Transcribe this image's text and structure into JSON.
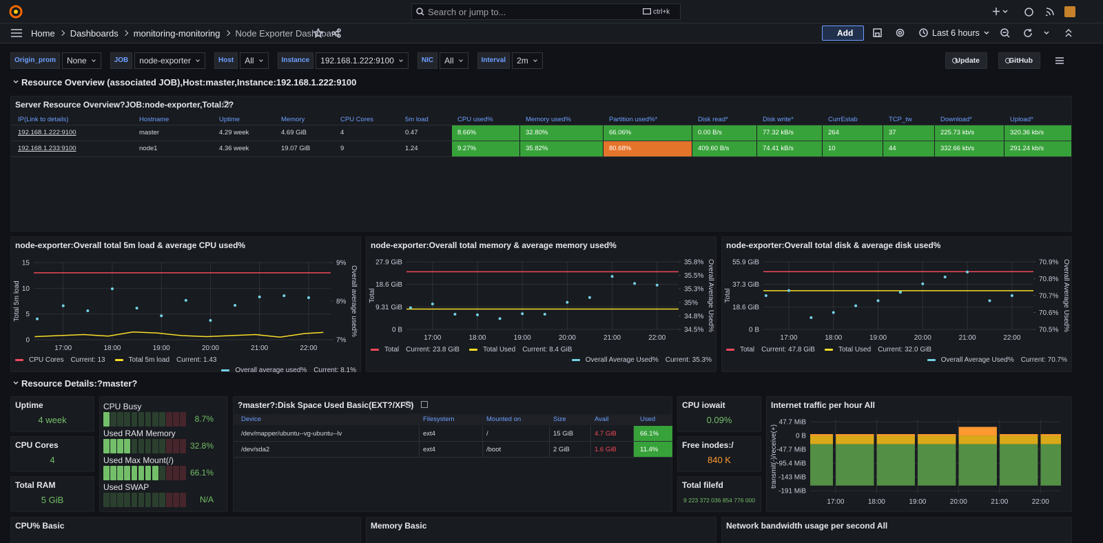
{
  "topbar": {
    "search": "Search or jump to...",
    "shortcut": "ctrl+k"
  },
  "nav": {
    "breadcrumbs": [
      "Home",
      "Dashboards",
      "monitoring-monitoring",
      "Node Exporter Dashboard"
    ],
    "add": "Add",
    "time_range": "Last 6 hours"
  },
  "variables": [
    {
      "label": "Origin_prom",
      "value": "None"
    },
    {
      "label": "JOB",
      "value": "node-exporter"
    },
    {
      "label": "Host",
      "value": "All"
    },
    {
      "label": "Instance",
      "value": "192.168.1.222:9100"
    },
    {
      "label": "NIC",
      "value": "All"
    },
    {
      "label": "Interval",
      "value": "2m"
    }
  ],
  "buttons": [
    "Update",
    "GitHub"
  ],
  "rows": [
    "Resource Overview (associated JOB),Host:master,Instance:192.168.1.222:9100",
    "Resource Details:?master?"
  ],
  "overview_table": {
    "title": "Server Resource Overview?JOB:node-exporter,Total:2?",
    "columns": [
      "IP(Link to details)",
      "Hostname",
      "Uptime",
      "Memory",
      "CPU Cores",
      "5m load",
      "CPU used%",
      "Memory used%",
      "Partition used%*",
      "Disk read*",
      "Disk write*",
      "CurrEstab",
      "TCP_tw",
      "Download*",
      "Upload*"
    ],
    "rows": [
      [
        "192.168.1.222:9100",
        "master",
        "4.29 week",
        "4.69 GiB",
        "4",
        "0.47",
        "8.66%",
        "32.80%",
        "66.06%",
        "0.00 B/s",
        "77.32 kB/s",
        "264",
        "37",
        "225.73 kb/s",
        "320.36 kb/s"
      ],
      [
        "192.168.1.233:9100",
        "node1",
        "4.36 week",
        "19.07 GiB",
        "9",
        "1.24",
        "9.27%",
        "35.82%",
        "80.68%",
        "409.60 B/s",
        "74.41 kB/s",
        "10",
        "44",
        "332.66 kb/s",
        "291.24 kb/s"
      ]
    ],
    "cell_colors": [
      [
        null,
        null,
        null,
        null,
        null,
        null,
        "#37a23a",
        "#37a23a",
        "#37a23a",
        "#37a23a",
        "#37a23a",
        "#37a23a",
        "#37a23a",
        "#37a23a",
        "#37a23a"
      ],
      [
        null,
        null,
        null,
        null,
        null,
        null,
        "#37a23a",
        "#37a23a",
        "#e5742b",
        "#37a23a",
        "#37a23a",
        "#37a23a",
        "#37a23a",
        "#37a23a",
        "#37a23a"
      ]
    ]
  },
  "charts": [
    {
      "type": "line",
      "title": "node-exporter:Overall total 5m load & average CPU used%",
      "ylabel": "Total 5m load",
      "y2label": "Overall average used%",
      "xlim": [
        16.4,
        22.45
      ],
      "xticks": [
        {
          "value": 17,
          "label": "17:00"
        },
        {
          "value": 18,
          "label": "18:00"
        },
        {
          "value": 19,
          "label": "19:00"
        },
        {
          "value": 20,
          "label": "20:00"
        },
        {
          "value": 21,
          "label": "21:00"
        },
        {
          "value": 22,
          "label": "22:00"
        }
      ],
      "ylim": [
        0,
        15
      ],
      "yticks": [
        0,
        5,
        10,
        15
      ],
      "y2lim": [
        7,
        9
      ],
      "y2ticks": [
        {
          "value": 7,
          "label": "7%"
        },
        {
          "value": 8,
          "label": "8%"
        },
        {
          "value": 9,
          "label": "9%"
        }
      ],
      "series": [
        {
          "name": "CPU Cores",
          "color": "#f2495c",
          "legend_value": "Current: 13",
          "x": [
            16.4,
            22.45
          ],
          "values": [
            13,
            13
          ]
        },
        {
          "name": "Total 5m load",
          "color": "#fade2a",
          "legend_value": "Current: 1.43",
          "x": [
            16.42,
            16.92,
            17.42,
            17.92,
            18.42,
            18.92,
            19.42,
            19.92,
            20.42,
            20.92,
            21.42,
            21.92,
            22.3
          ],
          "values": [
            0.6,
            0.8,
            1.0,
            0.7,
            1.5,
            1.3,
            0.8,
            0.6,
            0.8,
            1.0,
            0.5,
            1.2,
            1.43
          ]
        },
        {
          "name": "Overall average used%",
          "color": "#73d2e6",
          "legend_value": "Current: 8.1%",
          "type": "scatter",
          "axis": "y2",
          "x": [
            16.47,
            17,
            17.5,
            18,
            18.5,
            19,
            19.5,
            20,
            20.5,
            21,
            21.5,
            22
          ],
          "values": [
            7.54,
            7.88,
            7.75,
            8.32,
            7.82,
            7.62,
            8.02,
            7.5,
            7.89,
            8.11,
            8.14,
            8.09
          ]
        }
      ]
    },
    {
      "type": "line",
      "title": "node-exporter:Overall total memory & average memory used%",
      "ylabel": "Total",
      "y2label": "Overall Average Used%",
      "xlim": [
        16.42,
        22.48
      ],
      "xticks": [
        {
          "value": 17,
          "label": "17:00"
        },
        {
          "value": 18,
          "label": "18:00"
        },
        {
          "value": 19,
          "label": "19:00"
        },
        {
          "value": 20,
          "label": "20:00"
        },
        {
          "value": 21,
          "label": "21:00"
        },
        {
          "value": 22,
          "label": "22:00"
        }
      ],
      "ylim": [
        0,
        27.9
      ],
      "yticks": [
        {
          "value": 0,
          "label": "0 B"
        },
        {
          "value": 9.31,
          "label": "9.31 GiB"
        },
        {
          "value": 18.6,
          "label": "18.6 GiB"
        },
        {
          "value": 27.9,
          "label": "27.9 GiB"
        }
      ],
      "y2lim": [
        34.5,
        35.75
      ],
      "y2ticks": [
        {
          "value": 34.5,
          "label": "34.5%"
        },
        {
          "value": 34.75,
          "label": "34.8%"
        },
        {
          "value": 35,
          "label": "35%"
        },
        {
          "value": 35.25,
          "label": "35.3%"
        },
        {
          "value": 35.5,
          "label": "35.5%"
        },
        {
          "value": 35.75,
          "label": "35.8%"
        }
      ],
      "series": [
        {
          "name": "Total",
          "color": "#f2495c",
          "legend_value": "Current: 23.8 GiB",
          "x": [
            16.42,
            22.48
          ],
          "values": [
            23.8,
            23.8
          ]
        },
        {
          "name": "Total Used",
          "color": "#fade2a",
          "legend_value": "Current: 8.4 GiB",
          "x": [
            16.42,
            22.48
          ],
          "values": [
            8.4,
            8.4
          ]
        },
        {
          "name": "Overall Average Used%",
          "color": "#73d2e6",
          "legend_value": "Current: 35.3%",
          "type": "scatter",
          "axis": "y2",
          "x": [
            16.51,
            17,
            17.5,
            18,
            18.5,
            19,
            19.5,
            20,
            20.5,
            21,
            21.5,
            22
          ],
          "values": [
            34.9,
            34.97,
            34.78,
            34.77,
            34.7,
            34.79,
            34.78,
            35.0,
            35.09,
            35.48,
            35.35,
            35.32
          ]
        }
      ]
    },
    {
      "type": "line",
      "title": "node-exporter:Overall total disk & average disk used%",
      "ylabel": "Total",
      "y2label": "Overall Average Used%",
      "xlim": [
        16.43,
        22.48
      ],
      "xticks": [
        {
          "value": 17,
          "label": "17:00"
        },
        {
          "value": 18,
          "label": "18:00"
        },
        {
          "value": 19,
          "label": "19:00"
        },
        {
          "value": 20,
          "label": "20:00"
        },
        {
          "value": 21,
          "label": "21:00"
        },
        {
          "value": 22,
          "label": "22:00"
        }
      ],
      "ylim": [
        0,
        55.9
      ],
      "yticks": [
        {
          "value": 0,
          "label": "0 B"
        },
        {
          "value": 18.6,
          "label": "18.6 GiB"
        },
        {
          "value": 37.3,
          "label": "37.3 GiB"
        },
        {
          "value": 55.9,
          "label": "55.9 GiB"
        }
      ],
      "y2lim": [
        70.5,
        70.9
      ],
      "y2ticks": [
        {
          "value": 70.5,
          "label": "70.5%"
        },
        {
          "value": 70.6,
          "label": "70.6%"
        },
        {
          "value": 70.7,
          "label": "70.7%"
        },
        {
          "value": 70.8,
          "label": "70.8%"
        },
        {
          "value": 70.9,
          "label": "70.9%"
        }
      ],
      "series": [
        {
          "name": "Total",
          "color": "#f2495c",
          "legend_value": "Current: 47.8 GiB",
          "x": [
            16.43,
            22.48
          ],
          "values": [
            47.8,
            47.8
          ]
        },
        {
          "name": "Total Used",
          "color": "#fade2a",
          "legend_value": "Current: 32.0 GiB",
          "x": [
            16.43,
            22.48
          ],
          "values": [
            32.0,
            32.0
          ]
        },
        {
          "name": "Overall Average Used%",
          "color": "#73d2e6",
          "legend_value": "Current: 70.7%",
          "type": "scatter",
          "axis": "y2",
          "x": [
            16.49,
            17,
            17.5,
            18,
            18.5,
            19,
            19.5,
            20,
            20.5,
            21,
            21.5,
            22
          ],
          "values": [
            70.7,
            70.73,
            70.57,
            70.6,
            70.64,
            70.67,
            70.72,
            70.77,
            70.81,
            70.84,
            70.67,
            70.7
          ]
        }
      ]
    }
  ],
  "details": {
    "stats_left": [
      {
        "title": "Uptime",
        "value": "4 week",
        "color": "#73bf69"
      },
      {
        "title": "CPU Cores",
        "value": "4",
        "color": "#73bf69"
      },
      {
        "title": "Total RAM",
        "value": "5 GiB",
        "color": "#73bf69"
      }
    ],
    "gauges": {
      "labels": [
        "CPU Busy",
        "Used RAM Memory",
        "Used Max Mount(/)",
        "Used SWAP"
      ],
      "values": [
        8.7,
        32.8,
        66.1,
        null
      ],
      "value_labels": [
        "8.7%",
        "32.8%",
        "66.1%",
        "N/A"
      ],
      "color": "#73bf69"
    },
    "disk_table": {
      "title": "?master?:Disk Space Used Basic(EXT?/XFS)",
      "columns": [
        "Device",
        "Filesystem",
        "Mounted on",
        "Size",
        "Avail",
        "Used"
      ],
      "rows": [
        [
          "/dev/mapper/ubuntu--vg-ubuntu--lv",
          "ext4",
          "/",
          "15 GiB",
          "4.7 GiB",
          "66.1%"
        ],
        [
          "/dev/sda2",
          "ext4",
          "/boot",
          "2 GiB",
          "1.6 GiB",
          "11.4%"
        ]
      ],
      "avail_color": "#f2495c",
      "used_color": "#37a23a"
    },
    "stats_right": [
      {
        "title": "CPU iowait",
        "value": "0.09%",
        "color": "#73bf69"
      },
      {
        "title": "Free inodes:/",
        "value": "840 K",
        "color": "#ff9830"
      },
      {
        "title": "Total filefd",
        "value": "9 223 372 036 854 776 000",
        "color": "#73bf69"
      }
    ],
    "traffic": {
      "type": "bar",
      "title": "Internet traffic per hour All",
      "ylabel": "transmit(-)/receive(+)",
      "xlim": [
        16.38,
        22.5
      ],
      "xticks": [
        {
          "value": 17,
          "label": "17:00"
        },
        {
          "value": 18,
          "label": "18:00"
        },
        {
          "value": 19,
          "label": "19:00"
        },
        {
          "value": 20,
          "label": "20:00"
        },
        {
          "value": 21,
          "label": "21:00"
        },
        {
          "value": 22,
          "label": "22:00"
        }
      ],
      "ylim": [
        -200,
        55
      ],
      "yticks": [
        {
          "value": 47.7,
          "label": "47.7 MiB"
        },
        {
          "value": 0,
          "label": "0 B"
        },
        {
          "value": -47.7,
          "label": "-47.7 MiB"
        },
        {
          "value": -95.4,
          "label": "-95.4 MiB"
        },
        {
          "value": -143,
          "label": "-143 MiB"
        },
        {
          "value": -191,
          "label": "-191 MiB"
        }
      ],
      "x": [
        16.47,
        17.47,
        18.47,
        19.47,
        20.47,
        21.47,
        22.47
      ],
      "series": [
        {
          "color": "#ff9830",
          "values": [
            5,
            5,
            5,
            5,
            30,
            5,
            5
          ]
        },
        {
          "color": "#d9a91a",
          "values": [
            -30,
            -30,
            -30,
            -30,
            -30,
            -30,
            -30
          ]
        },
        {
          "color": "#538f45",
          "values": [
            -143,
            -143,
            -143,
            -143,
            -143,
            -143,
            -143
          ]
        }
      ]
    }
  },
  "bottom_panels": [
    "CPU% Basic",
    "Memory Basic",
    "Network bandwidth usage per second All"
  ]
}
